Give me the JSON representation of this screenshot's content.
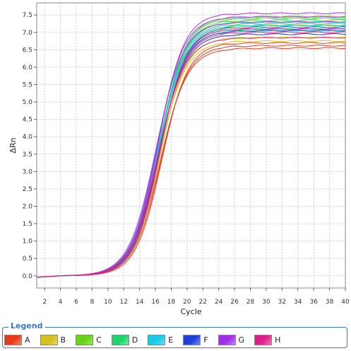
{
  "chart_data": {
    "type": "line",
    "title": "",
    "xlabel": "Cycle",
    "ylabel": "ΔRn",
    "xlim": [
      1,
      40
    ],
    "ylim": [
      -0.35,
      7.85
    ],
    "xticks": [
      2,
      4,
      6,
      8,
      10,
      12,
      14,
      16,
      18,
      20,
      22,
      24,
      26,
      28,
      30,
      32,
      34,
      36,
      38,
      40
    ],
    "yticks": [
      0.0,
      0.5,
      1.0,
      1.5,
      2.0,
      2.5,
      3.0,
      3.5,
      4.0,
      4.5,
      5.0,
      5.5,
      6.0,
      6.5,
      7.0,
      7.5
    ],
    "grid": true,
    "curve_model": "sigmoid",
    "series": [
      {
        "name": "A",
        "color": "#e83a1a",
        "plateaus": [
          6.55,
          6.62,
          6.7
        ],
        "midpoint": 16.7
      },
      {
        "name": "B",
        "color": "#d4c01e",
        "plateaus": [
          6.75,
          6.85,
          6.95
        ],
        "midpoint": 16.5
      },
      {
        "name": "C",
        "color": "#6ad218",
        "plateaus": [
          7.2,
          7.35,
          7.45
        ],
        "midpoint": 16.4
      },
      {
        "name": "D",
        "color": "#1fd46a",
        "plateaus": [
          7.1,
          7.25,
          7.4
        ],
        "midpoint": 16.3
      },
      {
        "name": "E",
        "color": "#1cc8e6",
        "plateaus": [
          7.05,
          7.2,
          7.3
        ],
        "midpoint": 16.35
      },
      {
        "name": "F",
        "color": "#2040d8",
        "plateaus": [
          6.95,
          7.05,
          7.15
        ],
        "midpoint": 16.45
      },
      {
        "name": "G",
        "color": "#a030e8",
        "plateaus": [
          7.3,
          7.45,
          7.55
        ],
        "midpoint": 16.2
      },
      {
        "name": "H",
        "color": "#e0208a",
        "plateaus": [
          6.85,
          7.0,
          7.1
        ],
        "midpoint": 16.4
      }
    ]
  },
  "legend": {
    "title": "Legend",
    "items": [
      {
        "label": "A",
        "color": "#e83a1a"
      },
      {
        "label": "B",
        "color": "#d4c01e"
      },
      {
        "label": "C",
        "color": "#6ad218"
      },
      {
        "label": "D",
        "color": "#1fd46a"
      },
      {
        "label": "E",
        "color": "#1cc8e6"
      },
      {
        "label": "F",
        "color": "#2040d8"
      },
      {
        "label": "G",
        "color": "#a030e8"
      },
      {
        "label": "H",
        "color": "#e0208a"
      }
    ]
  }
}
